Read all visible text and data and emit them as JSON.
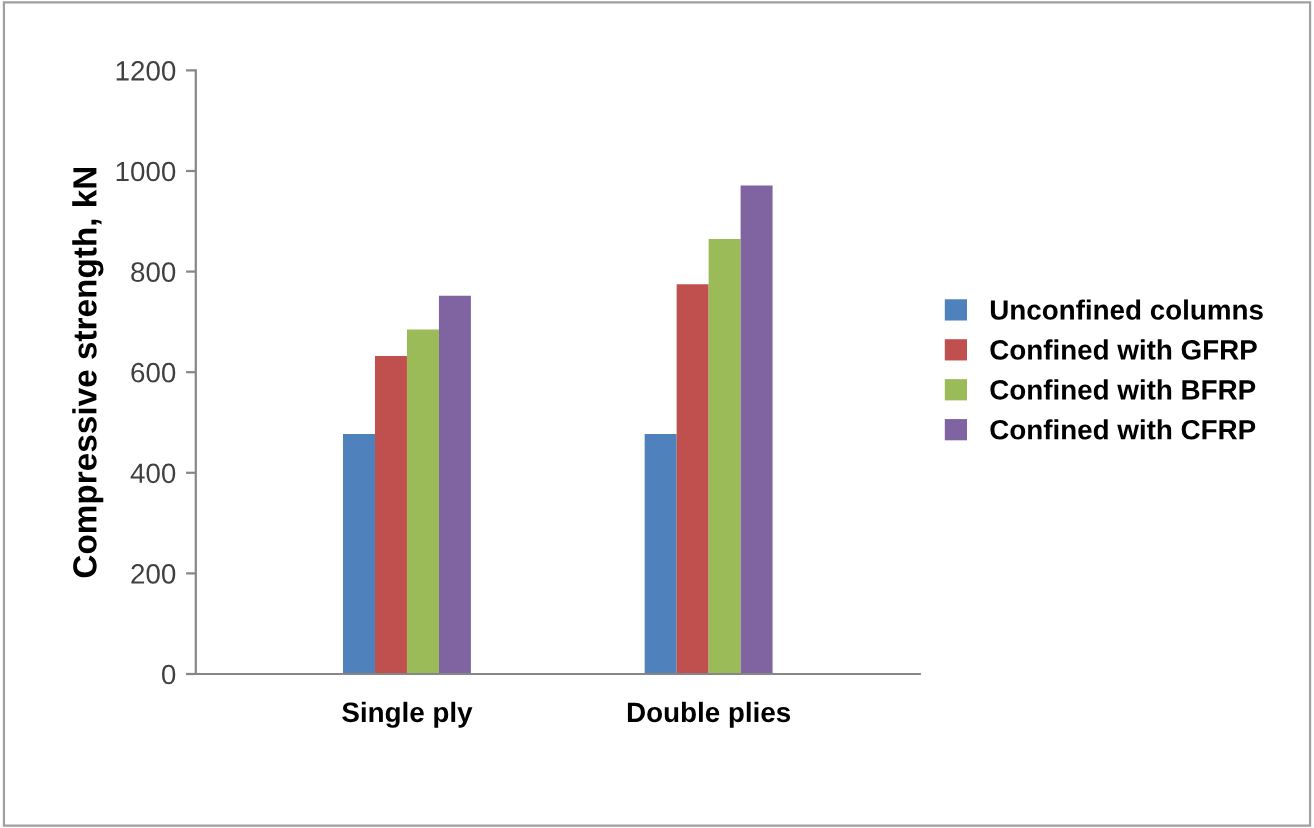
{
  "chart_data": {
    "type": "bar",
    "ylabel": "Compressive strength, kN",
    "categories": [
      "Single ply",
      "Double plies"
    ],
    "series": [
      {
        "name": "Unconfined columns",
        "color": "#4f81bd",
        "values": [
          477,
          477
        ]
      },
      {
        "name": "Confined with GFRP",
        "color": "#c0504d",
        "values": [
          632,
          775
        ]
      },
      {
        "name": "Confined with BFRP",
        "color": "#9bbb59",
        "values": [
          685,
          865
        ]
      },
      {
        "name": "Confined with CFRP",
        "color": "#8064a2",
        "values": [
          752,
          971
        ]
      }
    ],
    "ylim": [
      0,
      1200
    ],
    "yticks": [
      0,
      200,
      400,
      600,
      800,
      1000,
      1200
    ],
    "grid": false,
    "legend": "right"
  }
}
